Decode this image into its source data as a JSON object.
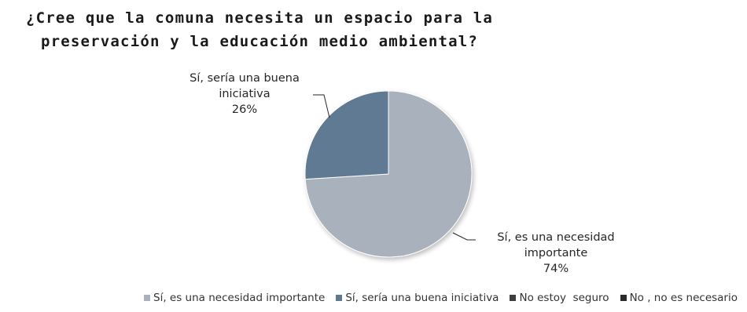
{
  "chart_data": {
    "type": "pie",
    "title_lines": [
      "¿Cree que la comuna necesita un espacio para la",
      "preservación y la educación medio ambiental?"
    ],
    "slices": [
      {
        "name": "Sí, es una necesidad importante",
        "value": 74,
        "label_lines": [
          "Sí, es una necesidad",
          "importante"
        ],
        "percent_label": "74%",
        "color": "#a9b1bc"
      },
      {
        "name": "Sí, sería una buena iniciativa",
        "value": 26,
        "label_lines": [
          "Sí, sería una buena",
          "iniciativa"
        ],
        "percent_label": "26%",
        "color": "#5e7a92"
      },
      {
        "name": "No estoy  seguro",
        "value": 0,
        "color": "#3d3d3d"
      },
      {
        "name": "No , no es necesario",
        "value": 0,
        "color": "#2b2b2b"
      }
    ],
    "legend_position": "bottom"
  }
}
